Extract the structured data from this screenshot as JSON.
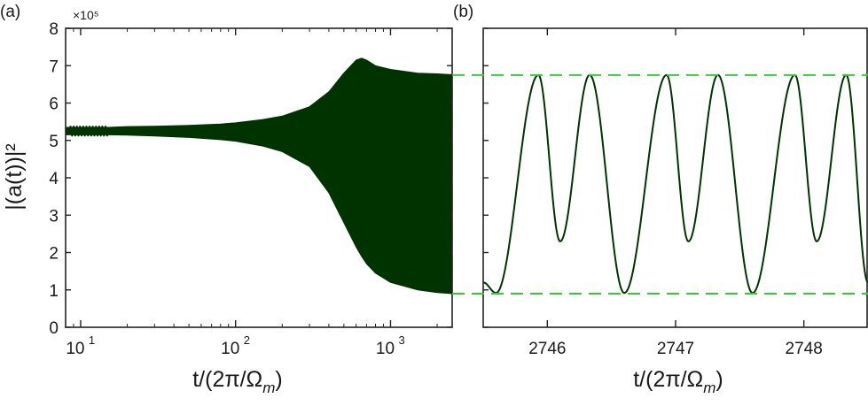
{
  "chart_data": [
    {
      "panel_label": "(a)",
      "type": "area",
      "description_style": "envelope band of oscillating intensity on log time axis",
      "ylabel": "|(a(t))|²",
      "xlabel": "t/(2π/Ωm)",
      "x_scale": "log",
      "xlim": [
        8,
        2500
      ],
      "ylim": [
        0,
        8
      ],
      "y_multiplier": "×10⁵",
      "x_ticks": [
        10,
        100,
        1000
      ],
      "x_tick_labels": [
        "10",
        "10",
        "10"
      ],
      "x_tick_exponents": [
        "1",
        "2",
        "3"
      ],
      "y_ticks": [
        0,
        1,
        2,
        3,
        4,
        5,
        6,
        7,
        8
      ],
      "y_tick_labels": [
        "0",
        "1",
        "2",
        "3",
        "4",
        "5",
        "6",
        "7",
        "8"
      ],
      "fill_color": "#003300",
      "envelope": {
        "x": [
          8,
          10,
          15,
          20,
          30,
          50,
          80,
          100,
          150,
          200,
          300,
          400,
          500,
          600,
          650,
          700,
          800,
          1000,
          1500,
          2000,
          2500
        ],
        "upper": [
          5.35,
          5.35,
          5.35,
          5.37,
          5.38,
          5.4,
          5.44,
          5.47,
          5.56,
          5.65,
          5.9,
          6.3,
          6.8,
          7.15,
          7.2,
          7.15,
          7.0,
          6.9,
          6.8,
          6.78,
          6.76
        ],
        "lower": [
          5.15,
          5.15,
          5.15,
          5.14,
          5.12,
          5.08,
          5.02,
          4.98,
          4.85,
          4.7,
          4.3,
          3.6,
          2.8,
          2.15,
          1.9,
          1.7,
          1.45,
          1.2,
          1.0,
          0.93,
          0.9
        ]
      },
      "early_oscillation": {
        "x_start": 8.5,
        "x_end": 15,
        "center": 5.25,
        "amplitude": 0.12,
        "cycles": 12
      }
    },
    {
      "panel_label": "(b)",
      "type": "line",
      "xlabel": "t/(2π/Ωm)",
      "xlim": [
        2745.5,
        2748.5
      ],
      "ylim": [
        0,
        8
      ],
      "x_ticks": [
        2746,
        2747,
        2748
      ],
      "x_tick_labels": [
        "2746",
        "2747",
        "2748"
      ],
      "line_color": "#003300",
      "reference_lines": [
        {
          "y": 6.75,
          "color": "#33cc33",
          "style": "dashed"
        },
        {
          "y": 0.9,
          "color": "#33cc33",
          "style": "dashed"
        }
      ],
      "peak_times": [
        2745.93,
        2746.33,
        2746.93,
        2747.33,
        2747.93,
        2748.33
      ],
      "peak_value": 6.75,
      "deep_minima": [
        {
          "x": 2745.6,
          "y": 0.92
        },
        {
          "x": 2746.6,
          "y": 0.92
        },
        {
          "x": 2747.6,
          "y": 0.92
        }
      ],
      "shallow_minima": [
        {
          "x": 2746.1,
          "y": 2.3
        },
        {
          "x": 2747.1,
          "y": 2.3
        },
        {
          "x": 2748.1,
          "y": 2.3
        }
      ],
      "start_value": 1.2,
      "end_value": 1.2
    }
  ]
}
